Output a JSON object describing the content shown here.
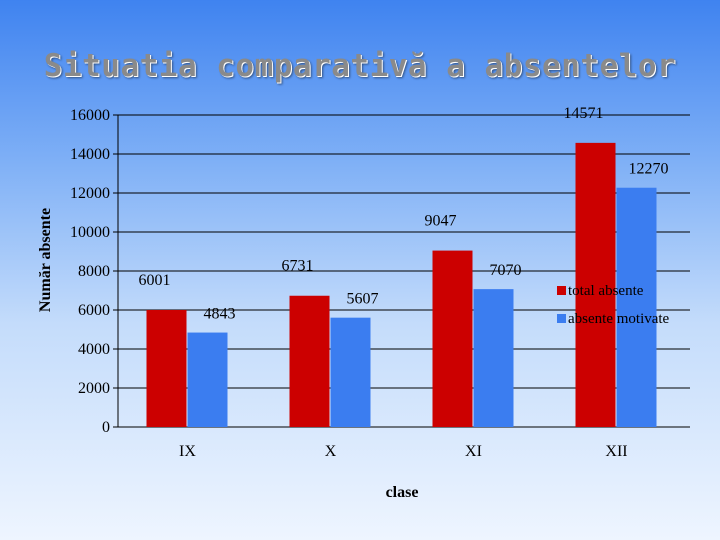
{
  "slide": {
    "title": "Situatia comparativă a absentelor"
  },
  "colors": {
    "total": "#cc0000",
    "motivate": "#3b7df0"
  },
  "chart_data": {
    "type": "bar",
    "title": "Situatia comparativă a absentelor",
    "categories": [
      "IX",
      "X",
      "XI",
      "XII"
    ],
    "series": [
      {
        "name": "total absente",
        "values": [
          6001,
          6731,
          9047,
          14571
        ]
      },
      {
        "name": "absente motivate",
        "values": [
          4843,
          5607,
          7070,
          12270
        ]
      }
    ],
    "xlabel": "clase",
    "ylabel": "Număr absente",
    "ylim": [
      0,
      16000
    ],
    "yticks": [
      "0",
      "2000",
      "4000",
      "6000",
      "8000",
      "10000",
      "12000",
      "14000",
      "16000"
    ],
    "grid": true,
    "legend": "right"
  }
}
